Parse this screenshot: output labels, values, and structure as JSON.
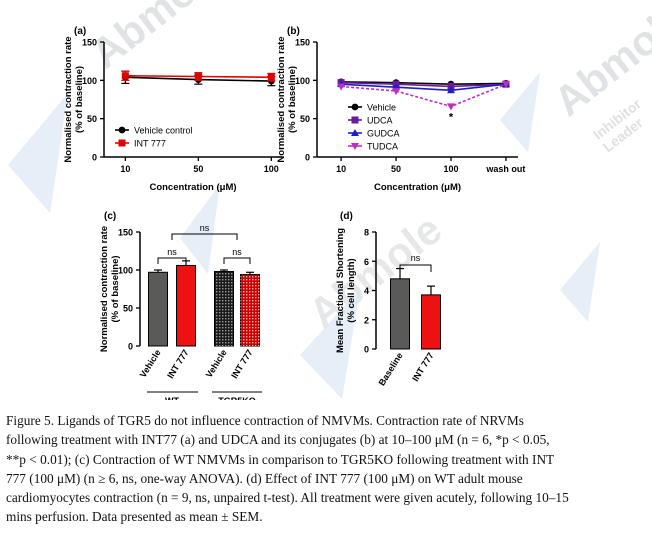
{
  "watermark": {
    "brand": "Abmole",
    "tagline": "Inhibitor Leader"
  },
  "colors": {
    "black": "#000000",
    "red": "#e00000",
    "purple": "#6a1b9a",
    "blue": "#1f1fbf",
    "magenta": "#c02cc0",
    "grey": "#555555"
  },
  "chart_data": [
    {
      "panel": "(a)",
      "type": "line",
      "x": [
        "10",
        "50",
        "100"
      ],
      "xlabel": "Concentration (μM)",
      "ylabel": "Normalised contraction rate (% of baseline)",
      "ylim": [
        0,
        150
      ],
      "yticks": [
        "0",
        "50",
        "100",
        "150"
      ],
      "series": [
        {
          "name": "Vehicle control",
          "values": [
            104,
            101,
            99
          ],
          "err": [
            8,
            6,
            6
          ],
          "marker": "circle"
        },
        {
          "name": "INT 777",
          "values": [
            106,
            105,
            104
          ],
          "err": [
            6,
            5,
            5
          ],
          "marker": "square"
        }
      ],
      "legend": "bottom-left"
    },
    {
      "panel": "(b)",
      "type": "line",
      "x": [
        "10",
        "50",
        "100",
        "wash out"
      ],
      "xlabel": "Concentration (μM)",
      "ylabel": "Normalised contraction rate (% of baseline)",
      "ylim": [
        0,
        150
      ],
      "yticks": [
        "0",
        "50",
        "100",
        "150"
      ],
      "series": [
        {
          "name": "Vehicle",
          "values": [
            98,
            97,
            95,
            96
          ],
          "marker": "circle"
        },
        {
          "name": "UDCA",
          "values": [
            97,
            95,
            92,
            95
          ],
          "marker": "square"
        },
        {
          "name": "GUDCA",
          "values": [
            95,
            91,
            87,
            95
          ],
          "marker": "triangle-up"
        },
        {
          "name": "TUDCA",
          "values": [
            92,
            86,
            66,
            95
          ],
          "marker": "triangle-down"
        }
      ],
      "annotation": "*",
      "legend": "bottom-left"
    },
    {
      "panel": "(c)",
      "type": "bar",
      "categories": [
        "Vehicle",
        "INT 777",
        "Vehicle",
        "INT 777"
      ],
      "groups": [
        "WT",
        "TGR5KO"
      ],
      "ylabel": "Normalised contraction rate (% of baseline)",
      "ylim": [
        0,
        150
      ],
      "yticks": [
        "0",
        "50",
        "100",
        "150"
      ],
      "values": [
        97,
        106,
        98,
        94
      ],
      "err": [
        3,
        6,
        2,
        3
      ],
      "significance": [
        "ns",
        "ns",
        "ns"
      ]
    },
    {
      "panel": "(d)",
      "type": "bar",
      "categories": [
        "Baseline",
        "INT 777"
      ],
      "ylabel": "Mean Fractional Shortening (% cell length)",
      "ylim": [
        0,
        8
      ],
      "yticks": [
        "0",
        "2",
        "4",
        "6",
        "8"
      ],
      "values": [
        4.8,
        3.7
      ],
      "err": [
        0.7,
        0.6
      ],
      "significance": [
        "ns"
      ]
    }
  ],
  "caption": [
    "Figure 5. Ligands of TGR5 do not influence contraction of NMVMs. Contraction rate of NRVMs",
    "following treatment with INT77 (a) and UDCA and its conjugates (b) at 10–100 μM (n = 6, *p < 0.05,",
    "**p < 0.01); (c) Contraction of WT NMVMs in comparison to TGR5KO following treatment with INT",
    "777 (100 μM) (n ≥ 6, ns, one-way ANOVA). (d) Effect of INT 777 (100 μM) on WT adult mouse",
    "cardiomyocytes contraction (n = 9, ns, unpaired t-test). All treatment were given acutely, following 10–15",
    "mins perfusion. Data presented as mean ± SEM."
  ]
}
